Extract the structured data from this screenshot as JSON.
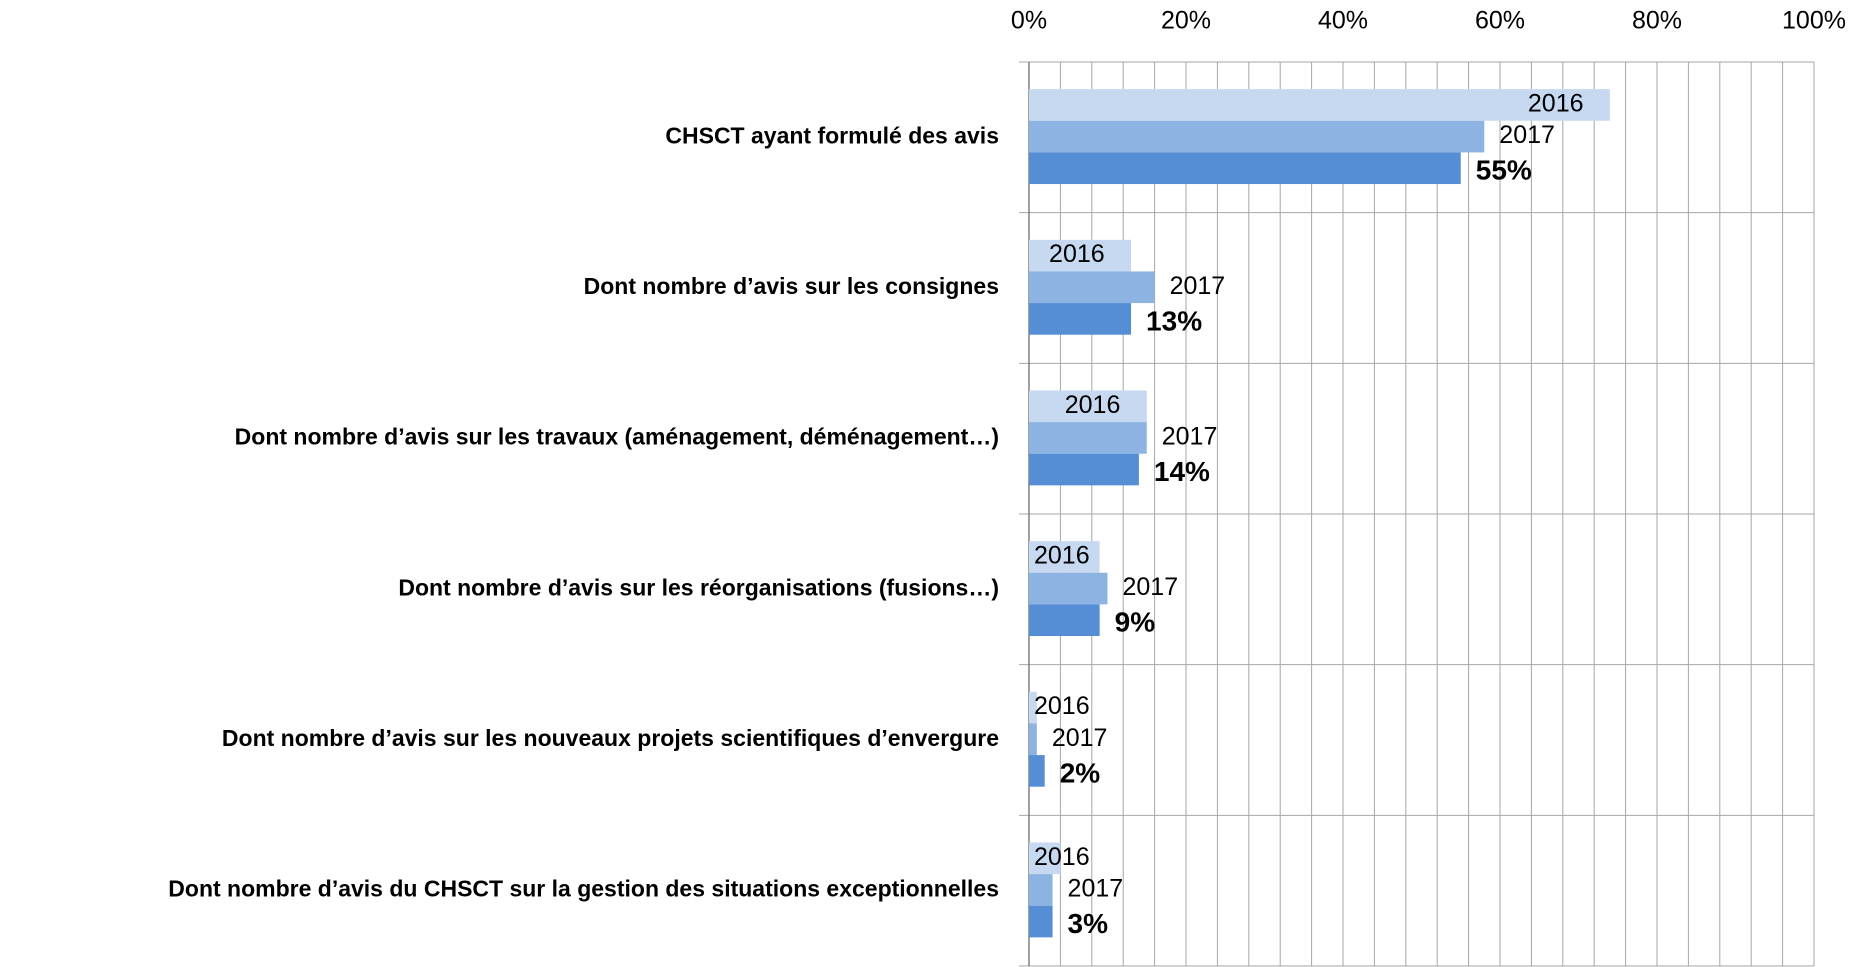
{
  "chart_data": {
    "type": "hbar",
    "categories": [
      "CHSCT ayant formulé des avis",
      "Dont nombre d’avis sur les consignes",
      "Dont nombre d’avis sur les travaux (aménagement, déménagement…)",
      "Dont nombre d’avis sur les réorganisations (fusions…)",
      "Dont nombre d’avis sur les nouveaux projets scientifiques d’envergure",
      "Dont nombre d’avis du CHSCT sur la gestion des situations exceptionnelles"
    ],
    "series": [
      {
        "name": "2016",
        "color": "#c6d9f1",
        "values": [
          74,
          13,
          15,
          9,
          1,
          4
        ]
      },
      {
        "name": "2017",
        "color": "#8db3e2",
        "values": [
          58,
          16,
          15,
          10,
          1,
          3
        ]
      },
      {
        "color": "#558ed5",
        "values": [
          55,
          13,
          14,
          9,
          2,
          3
        ],
        "value_labels": [
          "55%",
          "13%",
          "14%",
          "9%",
          "2%",
          "3%"
        ]
      }
    ],
    "xlim": [
      0,
      100
    ],
    "xticks": [
      {
        "value": 0,
        "label": "0%"
      },
      {
        "value": 20,
        "label": "20%"
      },
      {
        "value": 40,
        "label": "40%"
      },
      {
        "value": 60,
        "label": "60%"
      },
      {
        "value": 80,
        "label": "80%"
      },
      {
        "value": 100,
        "label": "100%"
      }
    ],
    "xgrid": [
      0,
      4,
      8,
      12,
      16,
      20,
      24,
      28,
      32,
      36,
      40,
      44,
      48,
      52,
      56,
      60,
      64,
      68,
      72,
      76,
      80,
      84,
      88,
      92,
      96,
      100
    ]
  }
}
